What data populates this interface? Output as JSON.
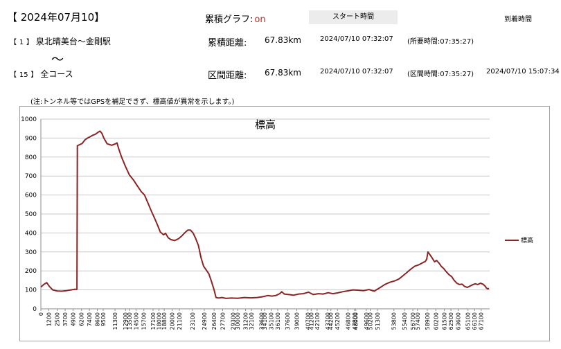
{
  "header": {
    "date_title": "【 2024年07月10】",
    "graph_label": "累積グラフ:",
    "graph_state": "on",
    "start_button": "スタート時間",
    "arrive_label": "到着時間"
  },
  "row1": {
    "section_open": "【",
    "section_num": "1",
    "section_close": "】",
    "section_name": "泉北晴美台～金剛駅",
    "label": "累積距離:",
    "value": "67.83km",
    "start_time": "2024/07/10 07:32:07",
    "duration": "(所要時間:07:35:27)"
  },
  "tilde": "～",
  "row2": {
    "section_open": "【",
    "section_num": "15",
    "section_close": "】",
    "section_name": "全コース",
    "label": "区間距離:",
    "value": "67.83km",
    "start_time": "2024/07/10 07:32:07",
    "duration": "(区間時間:07:35:27)",
    "arrive_time": "2024/07/10 15:07:34"
  },
  "note": "(注:トンネル等ではGPSを補足できず、標高値が異常を示します。)",
  "colors": {
    "series": "#8b2323",
    "grid": "#c8c8c8",
    "accent_on": "#e02020"
  },
  "chart_data": {
    "type": "line",
    "title": "標高",
    "xlabel": "",
    "ylabel": "",
    "ylim": [
      0,
      1000
    ],
    "yticks": [
      0,
      100,
      200,
      300,
      400,
      500,
      600,
      700,
      800,
      900,
      1000
    ],
    "xlim": [
      0,
      68400
    ],
    "xticks": [
      0,
      1200,
      2500,
      3700,
      4900,
      6200,
      7400,
      8600,
      9500,
      11300,
      12900,
      13500,
      14500,
      15700,
      17100,
      18000,
      18800,
      20000,
      21100,
      23100,
      24900,
      26400,
      27700,
      29300,
      30000,
      31200,
      32100,
      33600,
      34100,
      35100,
      36100,
      37600,
      39000,
      40700,
      41200,
      42100,
      43700,
      44200,
      45200,
      46800,
      47800,
      48000,
      49600,
      50200,
      51300,
      53800,
      55400,
      56700,
      57400,
      58900,
      60200,
      61500,
      62500,
      63600,
      65100,
      66100,
      67100
    ],
    "grid": true,
    "legend_position": "right",
    "series": [
      {
        "name": "標高",
        "points": [
          [
            0,
            115
          ],
          [
            500,
            130
          ],
          [
            900,
            138
          ],
          [
            1300,
            118
          ],
          [
            1800,
            100
          ],
          [
            2500,
            94
          ],
          [
            3200,
            93
          ],
          [
            3900,
            96
          ],
          [
            4600,
            100
          ],
          [
            5100,
            103
          ],
          [
            5500,
            103
          ],
          [
            5560,
            860
          ],
          [
            5900,
            865
          ],
          [
            6300,
            872
          ],
          [
            6700,
            890
          ],
          [
            7100,
            900
          ],
          [
            7500,
            907
          ],
          [
            7900,
            915
          ],
          [
            8300,
            920
          ],
          [
            8700,
            930
          ],
          [
            9000,
            937
          ],
          [
            9300,
            925
          ],
          [
            9600,
            900
          ],
          [
            10100,
            870
          ],
          [
            10800,
            862
          ],
          [
            11400,
            870
          ],
          [
            11600,
            875
          ],
          [
            11900,
            840
          ],
          [
            12300,
            800
          ],
          [
            12900,
            750
          ],
          [
            13500,
            705
          ],
          [
            14100,
            680
          ],
          [
            14700,
            648
          ],
          [
            15300,
            618
          ],
          [
            15800,
            600
          ],
          [
            16300,
            560
          ],
          [
            16800,
            518
          ],
          [
            17300,
            480
          ],
          [
            17800,
            440
          ],
          [
            18200,
            405
          ],
          [
            18700,
            390
          ],
          [
            19000,
            398
          ],
          [
            19400,
            375
          ],
          [
            19800,
            365
          ],
          [
            20400,
            360
          ],
          [
            21000,
            370
          ],
          [
            21500,
            385
          ],
          [
            21900,
            400
          ],
          [
            22400,
            415
          ],
          [
            22800,
            415
          ],
          [
            23200,
            400
          ],
          [
            23600,
            370
          ],
          [
            24000,
            335
          ],
          [
            24400,
            270
          ],
          [
            24800,
            225
          ],
          [
            25200,
            205
          ],
          [
            25600,
            185
          ],
          [
            26000,
            145
          ],
          [
            26400,
            100
          ],
          [
            26700,
            60
          ],
          [
            27100,
            57
          ],
          [
            27600,
            60
          ],
          [
            28200,
            55
          ],
          [
            29000,
            57
          ],
          [
            30000,
            56
          ],
          [
            31000,
            60
          ],
          [
            32000,
            58
          ],
          [
            33000,
            60
          ],
          [
            33800,
            64
          ],
          [
            34600,
            70
          ],
          [
            35200,
            67
          ],
          [
            35800,
            70
          ],
          [
            36400,
            80
          ],
          [
            36700,
            90
          ],
          [
            37100,
            78
          ],
          [
            37800,
            75
          ],
          [
            38500,
            72
          ],
          [
            39300,
            78
          ],
          [
            40000,
            80
          ],
          [
            40800,
            88
          ],
          [
            41500,
            75
          ],
          [
            42300,
            80
          ],
          [
            43000,
            78
          ],
          [
            43800,
            85
          ],
          [
            44500,
            80
          ],
          [
            45200,
            84
          ],
          [
            46000,
            90
          ],
          [
            46800,
            95
          ],
          [
            47600,
            100
          ],
          [
            48400,
            98
          ],
          [
            49200,
            96
          ],
          [
            50000,
            102
          ],
          [
            50800,
            93
          ],
          [
            51600,
            110
          ],
          [
            52400,
            128
          ],
          [
            53200,
            140
          ],
          [
            54000,
            148
          ],
          [
            54600,
            158
          ],
          [
            55200,
            175
          ],
          [
            55800,
            192
          ],
          [
            56400,
            210
          ],
          [
            57000,
            225
          ],
          [
            57600,
            232
          ],
          [
            58200,
            243
          ],
          [
            58600,
            250
          ],
          [
            58800,
            262
          ],
          [
            59000,
            300
          ],
          [
            59300,
            285
          ],
          [
            59600,
            270
          ],
          [
            60000,
            248
          ],
          [
            60300,
            255
          ],
          [
            60700,
            240
          ],
          [
            61000,
            225
          ],
          [
            61400,
            212
          ],
          [
            61800,
            195
          ],
          [
            62200,
            180
          ],
          [
            62600,
            170
          ],
          [
            63000,
            150
          ],
          [
            63400,
            135
          ],
          [
            63800,
            128
          ],
          [
            64200,
            130
          ],
          [
            64600,
            118
          ],
          [
            65000,
            113
          ],
          [
            65400,
            120
          ],
          [
            65800,
            127
          ],
          [
            66200,
            132
          ],
          [
            66600,
            128
          ],
          [
            67000,
            135
          ],
          [
            67400,
            130
          ],
          [
            67700,
            120
          ],
          [
            67900,
            110
          ],
          [
            68100,
            105
          ],
          [
            68300,
            108
          ]
        ]
      }
    ]
  }
}
